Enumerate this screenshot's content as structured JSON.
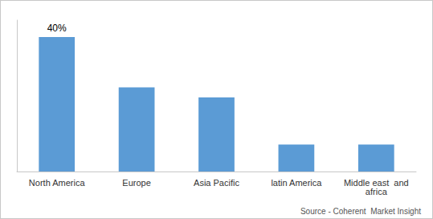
{
  "chart_data": {
    "type": "bar",
    "categories": [
      "North America",
      "Europe",
      "Asia Pacific",
      "latin America",
      "Middle east  and\nafrica"
    ],
    "values": [
      40,
      25,
      22,
      8,
      8
    ],
    "color": "#5B9BD5",
    "ylim": [
      0,
      45
    ],
    "grid": false,
    "tick_labels": "x",
    "annotations": [
      {
        "text": "40%",
        "x": "North America",
        "y": 40
      }
    ],
    "source": "Source - Coherent  Market Insight"
  }
}
